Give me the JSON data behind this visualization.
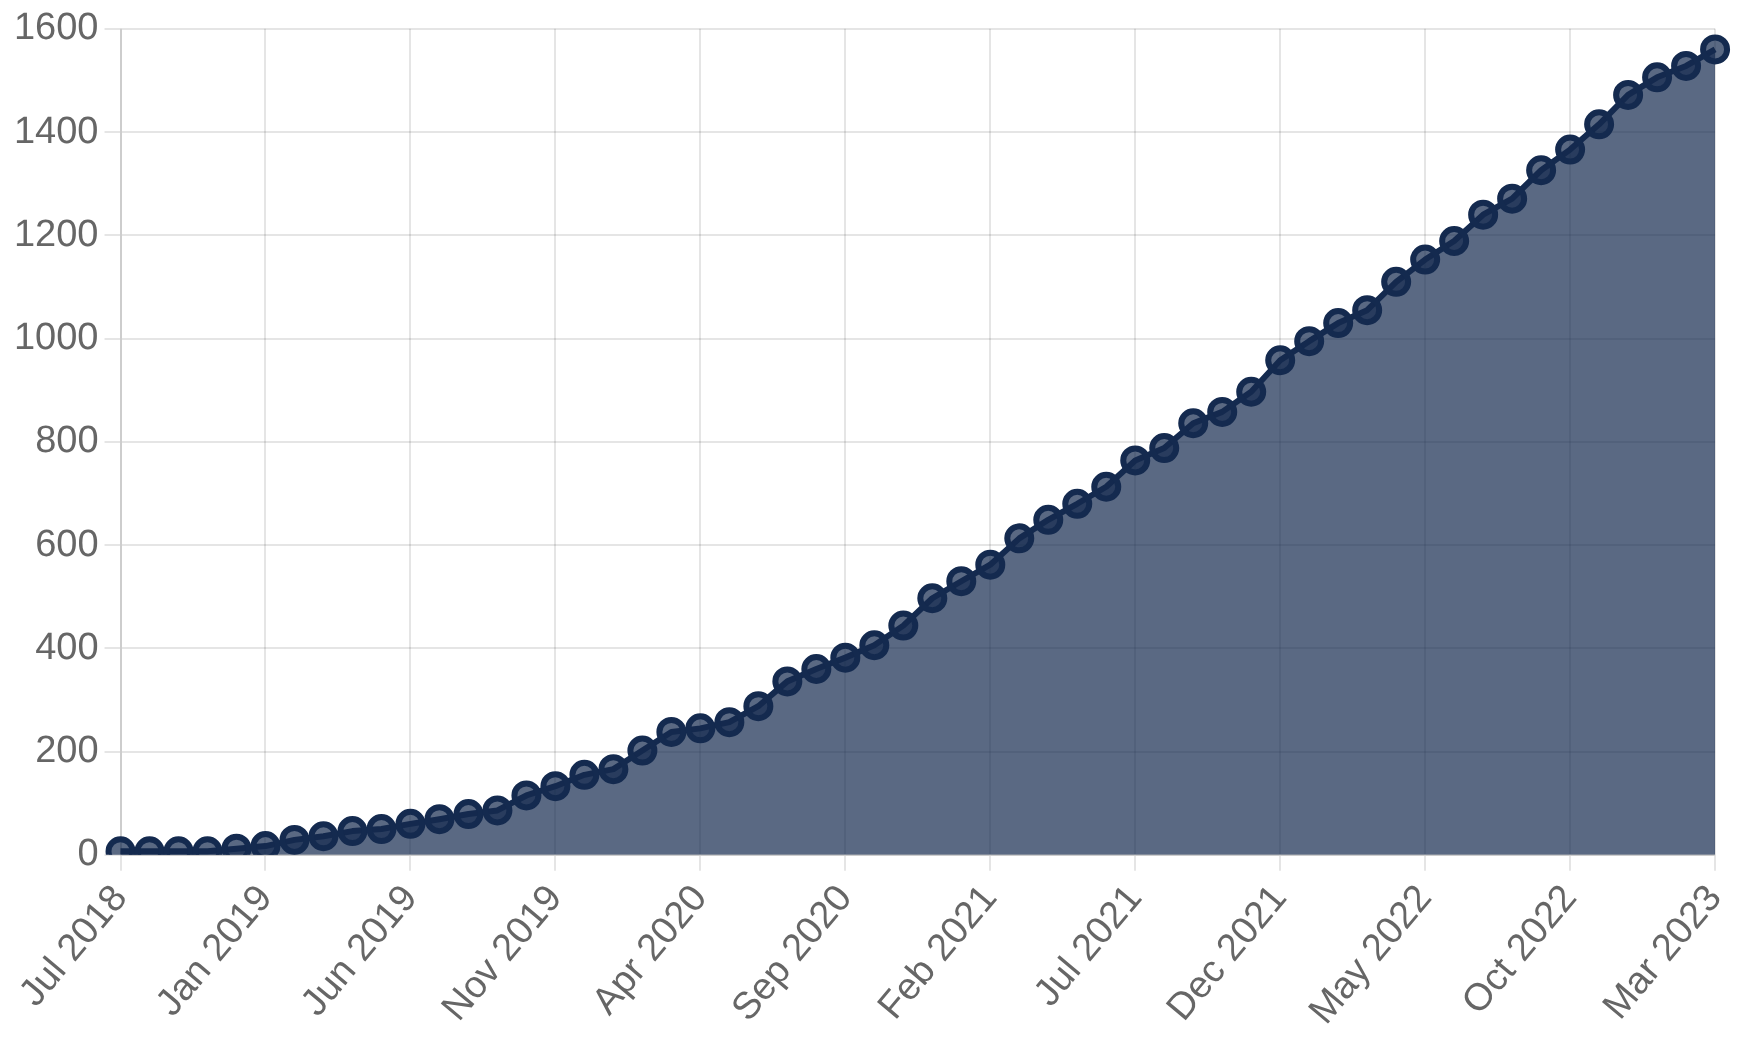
{
  "chart_data": {
    "type": "area",
    "categories": [
      "Jul 2018",
      null,
      null,
      null,
      null,
      "Jan 2019",
      null,
      null,
      null,
      null,
      "Jun 2019",
      null,
      null,
      null,
      null,
      "Nov 2019",
      null,
      null,
      null,
      null,
      "Apr 2020",
      null,
      null,
      null,
      null,
      "Sep 2020",
      null,
      null,
      null,
      null,
      "Feb 2021",
      null,
      null,
      null,
      null,
      "Jul 2021",
      null,
      null,
      null,
      null,
      "Dec 2021",
      null,
      null,
      null,
      null,
      "May 2022",
      null,
      null,
      null,
      null,
      "Oct 2022",
      null,
      null,
      null,
      null,
      "Mar 2023"
    ],
    "series": [
      {
        "color": "#142a4f",
        "values": [
          7,
          7,
          7,
          7,
          12,
          17,
          29,
          36,
          46,
          50,
          60,
          69,
          79,
          86,
          115,
          133,
          155,
          166,
          202,
          238,
          245,
          257,
          288,
          336,
          360,
          382,
          406,
          444,
          497,
          530,
          562,
          613,
          649,
          680,
          713,
          764,
          788,
          836,
          858,
          897,
          958,
          995,
          1030,
          1055,
          1110,
          1153,
          1189,
          1240,
          1271,
          1326,
          1366,
          1415,
          1472,
          1506,
          1528,
          1560
        ]
      }
    ],
    "ylim": [
      0,
      1600
    ],
    "yticks": [
      0,
      200,
      400,
      600,
      800,
      1000,
      1200,
      1400,
      1600
    ],
    "grid": true,
    "legend": false,
    "marker": "circle",
    "line_style": "solid"
  }
}
